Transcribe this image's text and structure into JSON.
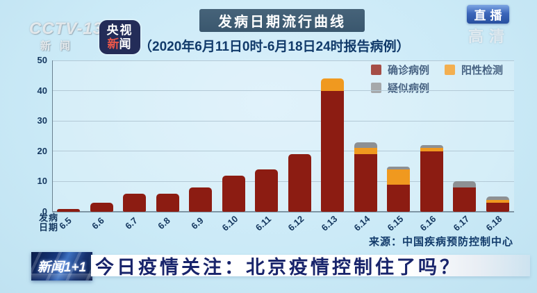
{
  "channel": {
    "watermark_line1": "CCTV-13",
    "watermark_line2": "新闻",
    "badge_top": "央视",
    "badge_bottom_red": "新",
    "badge_bottom_white": "闻",
    "live_label": "直播",
    "hd_watermark": "高清"
  },
  "header": {
    "title": "发病日期流行曲线",
    "subtitle": "（2020年6月11日0时-6月18日24时报告病例）"
  },
  "chart_data": {
    "type": "bar",
    "stacked": true,
    "title": "发病日期流行曲线",
    "xlabel": "发病\n日期",
    "ylabel": "",
    "ylim": [
      0,
      50
    ],
    "yticks": [
      0,
      10,
      20,
      30,
      40,
      50
    ],
    "grid": true,
    "legend_position": "top-right",
    "categories": [
      "6.5",
      "6.6",
      "6.7",
      "6.8",
      "6.9",
      "6.10",
      "6.11",
      "6.12",
      "6.13",
      "6.14",
      "6.15",
      "6.16",
      "6.17",
      "6.18"
    ],
    "series": [
      {
        "name": "确诊病例",
        "color": "#8c1c12",
        "values": [
          1,
          3,
          6,
          6,
          8,
          12,
          14,
          19,
          40,
          19,
          9,
          20,
          8,
          3
        ]
      },
      {
        "name": "阳性检测",
        "color": "#f0991f",
        "values": [
          0,
          0,
          0,
          0,
          0,
          0,
          0,
          0,
          4,
          2,
          5,
          1,
          0,
          1
        ]
      },
      {
        "name": "疑似病例",
        "color": "#8d9093",
        "values": [
          0,
          0,
          0,
          0,
          0,
          0,
          0,
          0,
          0,
          2,
          1,
          1,
          2,
          1
        ]
      }
    ]
  },
  "source": {
    "text": "来源：中国疾病预防控制中心"
  },
  "lower_third": {
    "program_logo": "新闻1+1",
    "headline": "今日疫情关注：北京疫情控制住了吗？"
  },
  "colors": {
    "background": "#cbeaf7",
    "confirmed": "#8c1c12",
    "positive": "#f0991f",
    "suspected": "#8d9093",
    "navy_text": "#14375f",
    "title_banner": "#3a576e",
    "headline_text": "#18246b"
  }
}
